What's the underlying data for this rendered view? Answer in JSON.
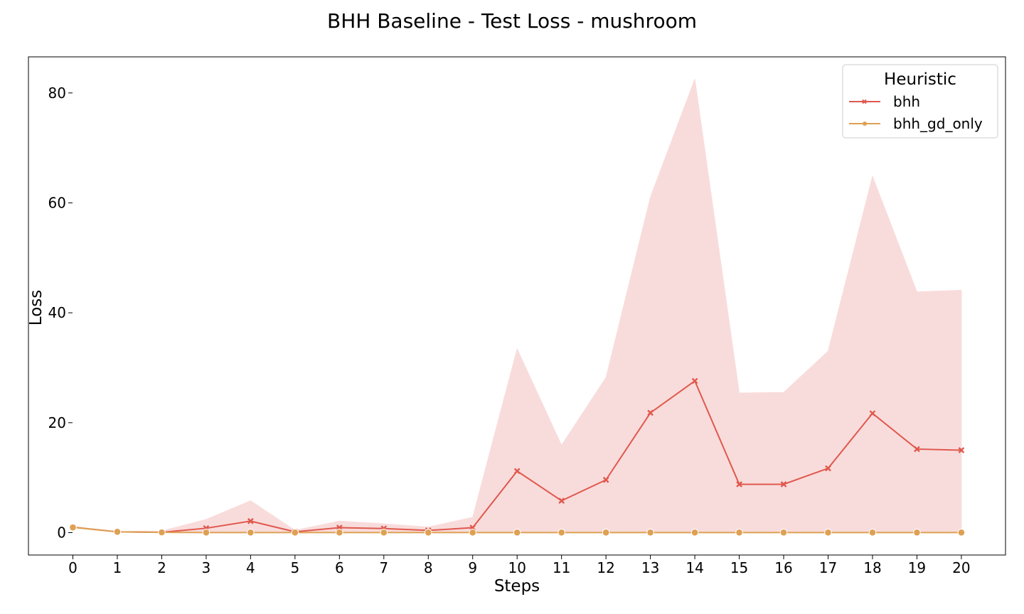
{
  "chart_data": {
    "type": "line",
    "title": "BHH Baseline - Test Loss - mushroom",
    "xlabel": "Steps",
    "ylabel": "Loss",
    "x": [
      0,
      1,
      2,
      3,
      4,
      5,
      6,
      7,
      8,
      9,
      10,
      11,
      12,
      13,
      14,
      15,
      16,
      17,
      18,
      19,
      20
    ],
    "xlim": [
      -1,
      21
    ],
    "ylim": [
      -4.2,
      86.5
    ],
    "yticks": [
      0,
      20,
      40,
      60,
      80
    ],
    "grid": false,
    "legend": {
      "title": "Heuristic",
      "placement": "top-right"
    },
    "series": [
      {
        "name": "bhh",
        "color": "#e0584e",
        "marker": "x",
        "values": [
          1.0,
          0.15,
          0.05,
          0.8,
          2.1,
          0.15,
          0.9,
          0.75,
          0.4,
          0.9,
          11.2,
          5.8,
          9.6,
          21.8,
          27.6,
          8.8,
          8.8,
          11.7,
          21.7,
          15.2,
          15.0
        ],
        "band_low": [
          1.0,
          0.1,
          0.0,
          0.0,
          0.0,
          0.0,
          0.0,
          0.0,
          0.0,
          0.0,
          0.0,
          0.0,
          0.0,
          0.0,
          0.0,
          0.0,
          0.0,
          0.0,
          0.0,
          0.0,
          0.0
        ],
        "band_high": [
          1.0,
          0.2,
          0.3,
          2.4,
          5.8,
          0.4,
          2.1,
          1.6,
          1.0,
          2.8,
          33.4,
          15.9,
          28.2,
          61.0,
          82.5,
          25.4,
          25.5,
          33.0,
          64.8,
          43.8,
          44.1
        ],
        "band_color": "#f8dcdb"
      },
      {
        "name": "bhh_gd_only",
        "color": "#dea052",
        "marker": "o",
        "values": [
          0.95,
          0.15,
          0.05,
          0.02,
          0.02,
          0.02,
          0.02,
          0.02,
          0.02,
          0.02,
          0.02,
          0.02,
          0.02,
          0.02,
          0.02,
          0.02,
          0.02,
          0.02,
          0.02,
          0.02,
          0.02
        ]
      }
    ]
  }
}
